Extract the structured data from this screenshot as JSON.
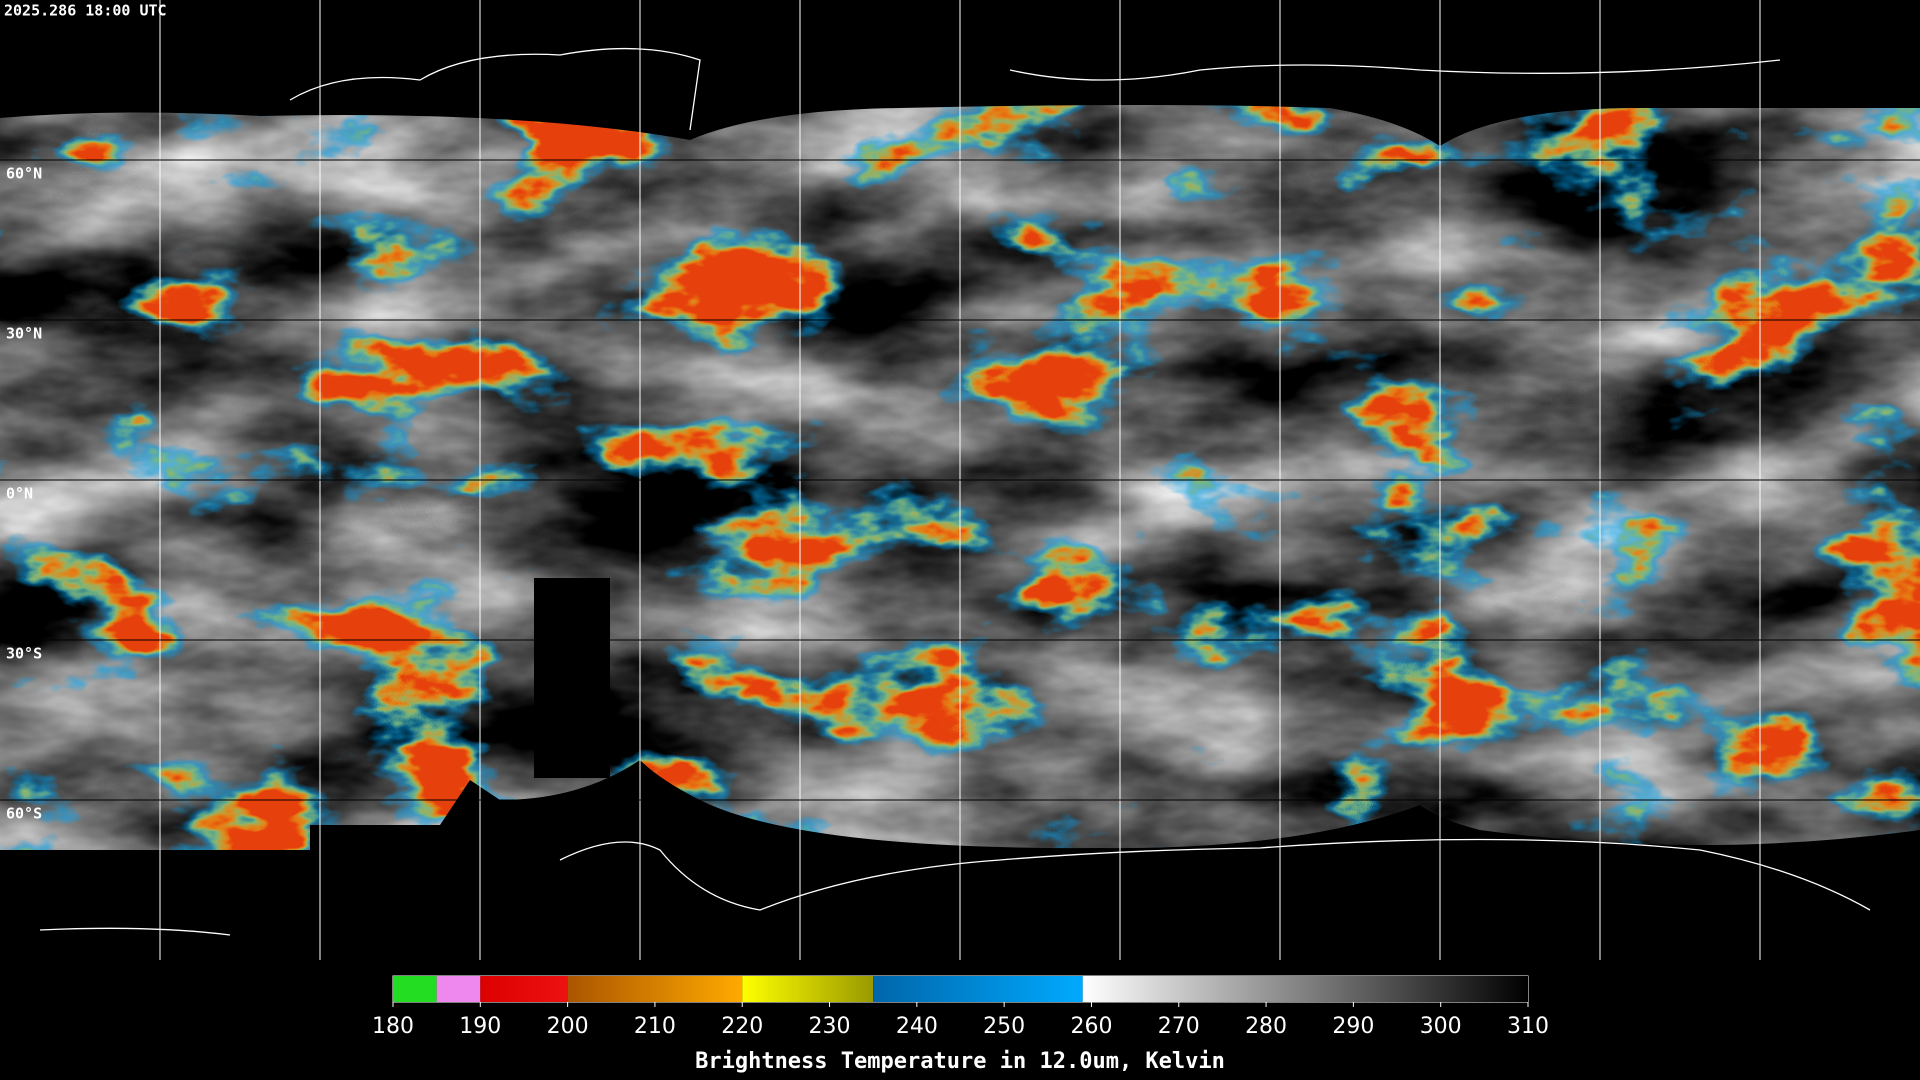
{
  "header": {
    "timestamp": "2025.286 18:00 UTC"
  },
  "map": {
    "lat_labels": [
      {
        "value": 60,
        "label": "60°N"
      },
      {
        "value": 30,
        "label": "30°N"
      },
      {
        "value": 0,
        "label": "0°N"
      },
      {
        "value": -30,
        "label": "30°S"
      },
      {
        "value": -60,
        "label": "60°S"
      }
    ],
    "lat_range": [
      90,
      -90
    ]
  },
  "colorbar": {
    "range": [
      180,
      310
    ],
    "ticks": [
      180,
      190,
      200,
      210,
      220,
      230,
      240,
      250,
      260,
      270,
      280,
      290,
      300,
      310
    ],
    "segments": [
      {
        "from": 180,
        "to": 185,
        "colors": [
          "#22dd22",
          "#22dd22"
        ]
      },
      {
        "from": 185,
        "to": 190,
        "colors": [
          "#ee88ee",
          "#ee88ee"
        ]
      },
      {
        "from": 190,
        "to": 200,
        "colors": [
          "#dd0000",
          "#ee1111"
        ]
      },
      {
        "from": 200,
        "to": 220,
        "colors": [
          "#aa5500",
          "#ffaa00"
        ]
      },
      {
        "from": 220,
        "to": 235,
        "colors": [
          "#ffff00",
          "#999900"
        ]
      },
      {
        "from": 235,
        "to": 259,
        "colors": [
          "#0066aa",
          "#00aaff"
        ]
      },
      {
        "from": 259,
        "to": 310,
        "colors": [
          "#ffffff",
          "#000000"
        ]
      }
    ],
    "label": "Brightness Temperature in 12.0um, Kelvin"
  }
}
